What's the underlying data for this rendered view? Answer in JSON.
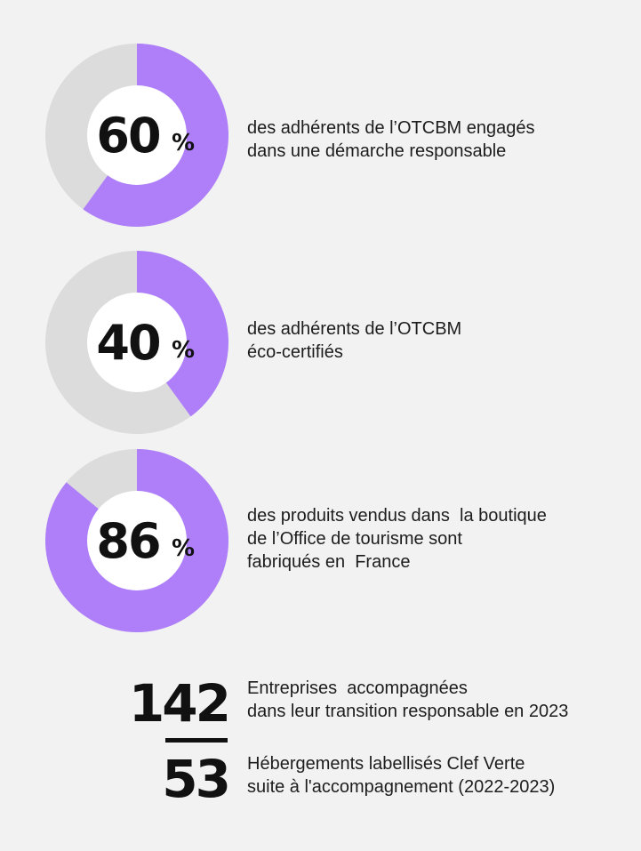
{
  "colors": {
    "accent": "#ae7ff9",
    "track": "#dcdcdc",
    "center": "#ffffff",
    "background": "#f2f2f3",
    "text": "#111111"
  },
  "chart_data": [
    {
      "type": "pie",
      "variant": "donut",
      "values": [
        60,
        40
      ],
      "value_label": "60",
      "unit": "%",
      "description_lines": [
        "des adhérents de l’OTCBM engagés",
        "dans une démarche responsable"
      ]
    },
    {
      "type": "pie",
      "variant": "donut",
      "values": [
        40,
        60
      ],
      "value_label": "40",
      "unit": "%",
      "description_lines": [
        "des adhérents de l’OTCBM",
        "éco-certifiés"
      ]
    },
    {
      "type": "pie",
      "variant": "donut",
      "values": [
        86,
        14
      ],
      "value_label": "86",
      "unit": "%",
      "description_lines": [
        "des produits vendus dans  la boutique",
        "de l’Office de tourisme sont",
        "fabriqués en  France"
      ]
    }
  ],
  "stats": [
    {
      "number": "142",
      "lines": [
        "Entreprises  accompagnées",
        "dans leur transition responsable en 2023"
      ]
    },
    {
      "number": "53",
      "lines": [
        "Hébergements labellisés Clef Verte",
        "suite à l'accompagnement (2022-2023)"
      ]
    }
  ]
}
